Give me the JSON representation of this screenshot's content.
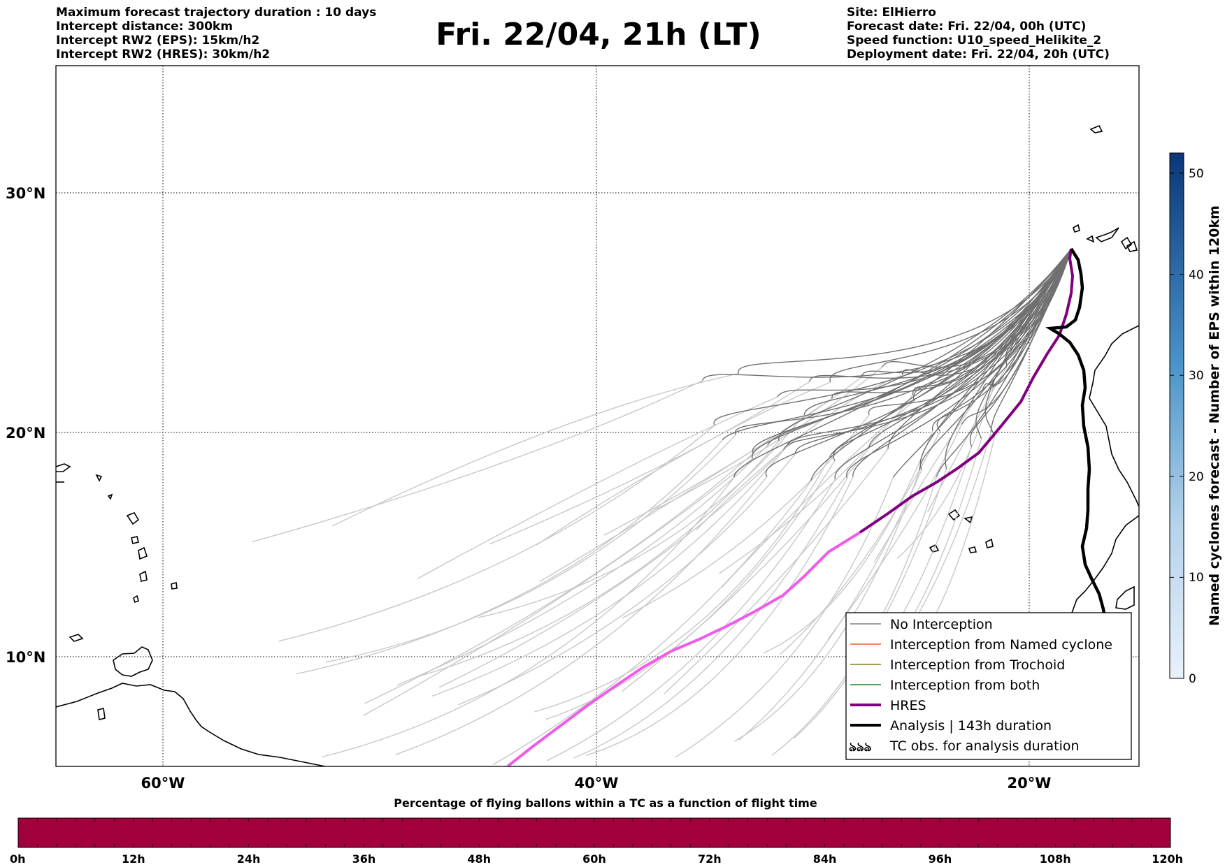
{
  "header": {
    "left_lines": [
      "Maximum forecast trajectory duration : 10 days",
      "Intercept distance: 300km",
      "Intercept RW2 (EPS):  15km/h2",
      "Intercept RW2 (HRES): 30km/h2"
    ],
    "right_lines": [
      "Site: ElHierro",
      "Forecast date: Fri. 22/04, 00h (UTC)",
      "Speed function: U10_speed_Helikite_2",
      "Deployment date: Fri. 22/04, 20h (UTC)"
    ],
    "title": "Fri. 22/04, 21h (LT)"
  },
  "map": {
    "lat_labels": [
      "30°N",
      "20°N",
      "10°N"
    ],
    "lon_labels": [
      "60°W",
      "40°W",
      "20°W"
    ],
    "lat_range": [
      5,
      35.3
    ],
    "lon_range": [
      -65,
      -15
    ],
    "gridlines": "on (dotted)"
  },
  "legend": {
    "items": [
      {
        "label": "No Interception",
        "color": "#808080"
      },
      {
        "label": "Interception from Named cyclone",
        "color": "#f05a28"
      },
      {
        "label": "Interception from Trochoid",
        "color": "#808020"
      },
      {
        "label": "Interception from both",
        "color": "#208020"
      },
      {
        "label": "HRES",
        "color": "#800080"
      },
      {
        "label": "Analysis | 143h duration",
        "color": "#000000"
      },
      {
        "label": "TC obs. for analysis duration",
        "symbol": "ঌঌঌ"
      }
    ]
  },
  "colorbar_right": {
    "label": "Named cyclones forecast - Number of EPS within 120km",
    "ticks": [
      "0",
      "10",
      "20",
      "30",
      "40",
      "50"
    ],
    "range": [
      0,
      52
    ]
  },
  "colorbar_bottom": {
    "title": "Percentage of flying ballons within a TC as a function of flight time",
    "ticks": [
      "0h",
      "12h",
      "24h",
      "36h",
      "48h",
      "60h",
      "72h",
      "84h",
      "96h",
      "108h",
      "120h"
    ],
    "color": "#a0003c"
  },
  "colors": {
    "hres_forecast": "#ee5ce8",
    "hres_core": "#800080",
    "eps_light": "#c8c8c8",
    "eps_dark": "#707070",
    "analysis": "#000000"
  }
}
